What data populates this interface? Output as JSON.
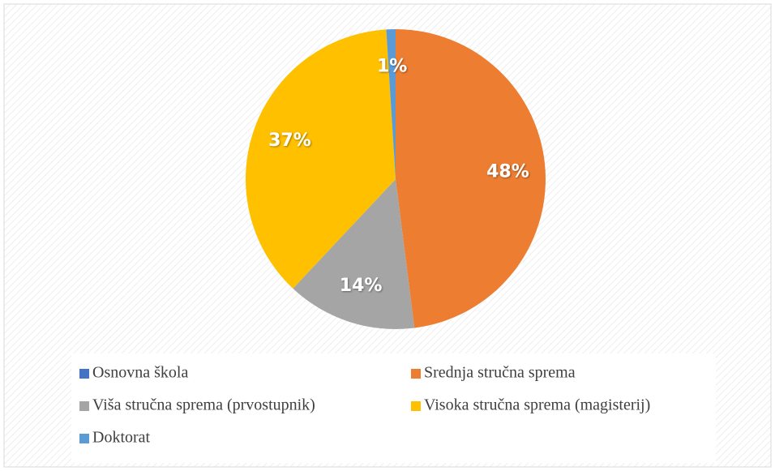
{
  "chart_data": {
    "type": "pie",
    "categories": [
      "Osnovna škola",
      "Srednja stručna sprema",
      "Viša stručna sprema (prvostupnik)",
      "Visoka stručna sprema (magisterij)",
      "Doktorat"
    ],
    "values": [
      0,
      48,
      14,
      37,
      1
    ],
    "value_labels": [
      null,
      "48%",
      "14%",
      "37%",
      "1%"
    ],
    "colors": [
      "#4472c4",
      "#ed7d31",
      "#a5a5a5",
      "#ffc000",
      "#5b9bd5"
    ],
    "legend": "bottom"
  }
}
